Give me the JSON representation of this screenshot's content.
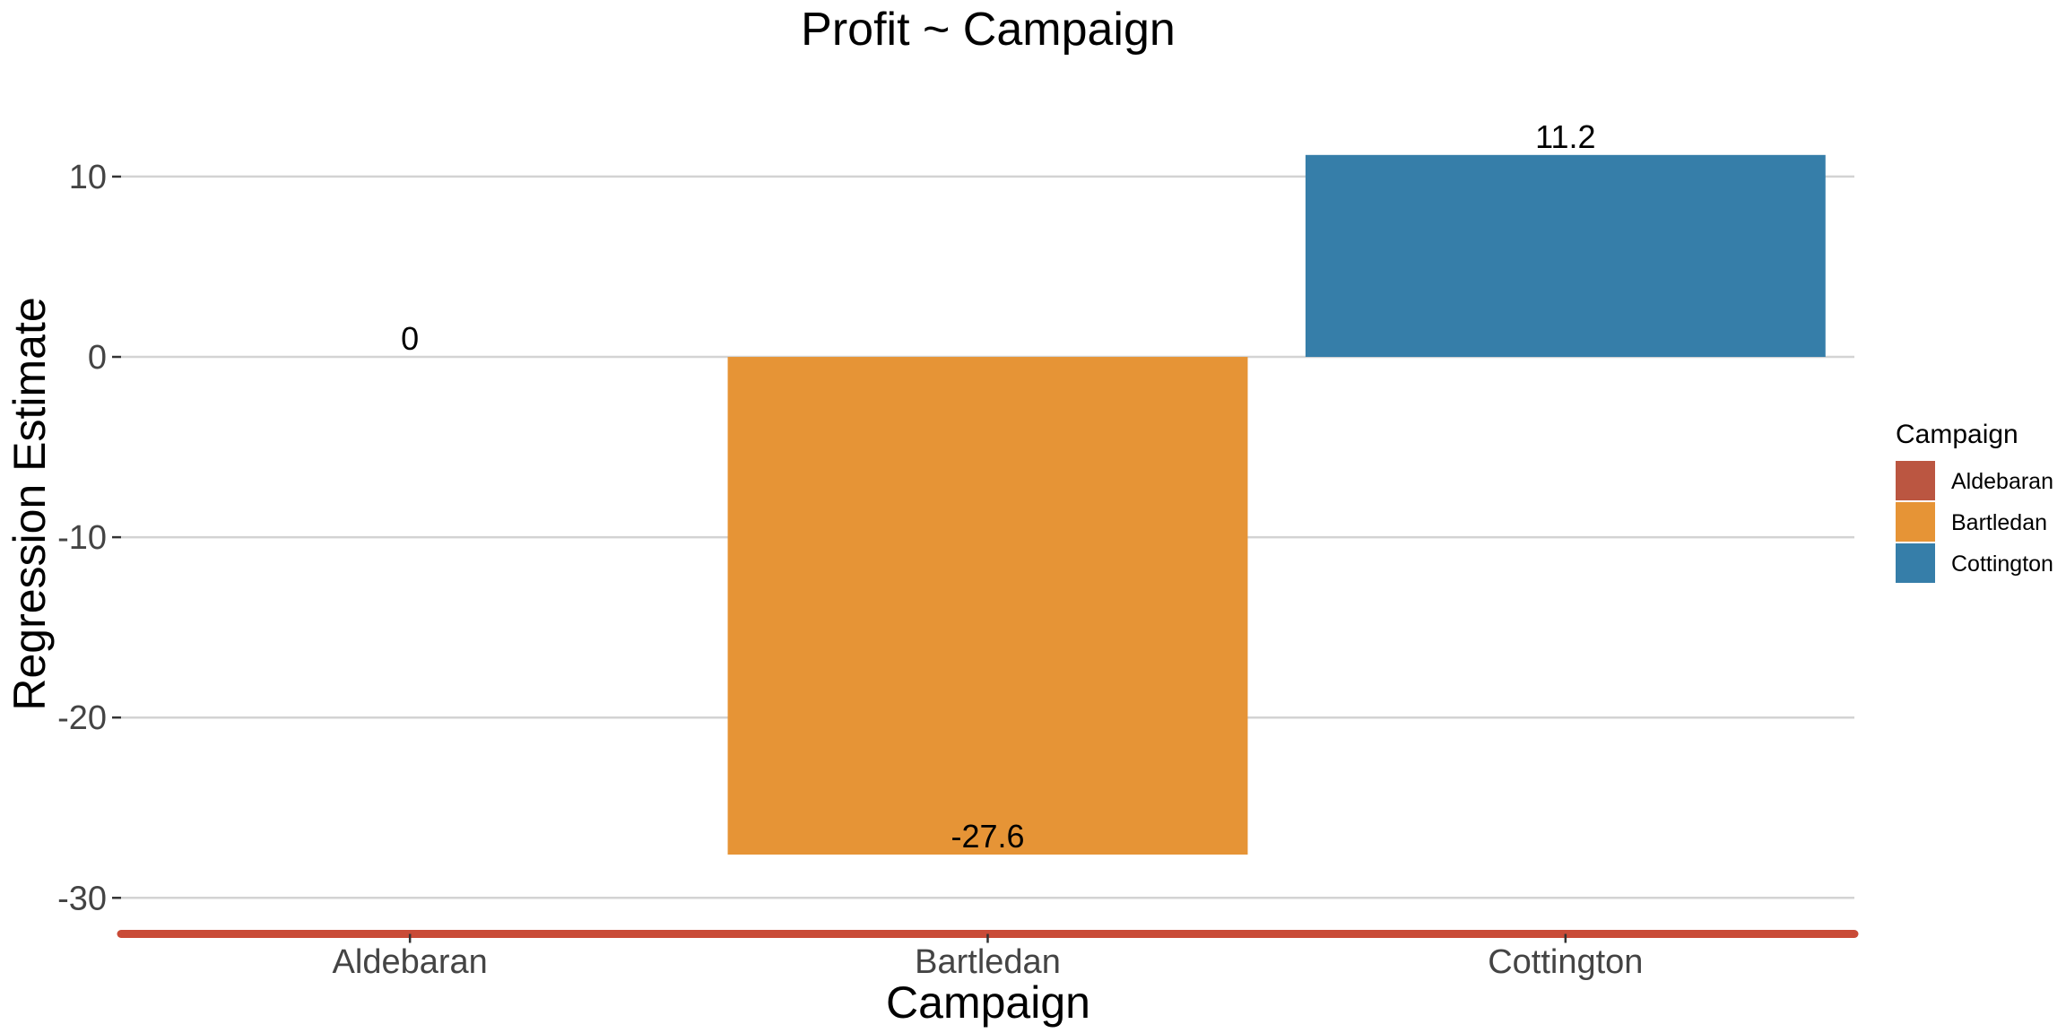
{
  "chart_data": {
    "type": "bar",
    "title": "Profit ~ Campaign",
    "xlabel": "Campaign",
    "ylabel": "Regression Estimate",
    "categories": [
      "Aldebaran",
      "Bartledan",
      "Cottington"
    ],
    "values": [
      0,
      -27.6,
      11.2
    ],
    "data_labels": [
      "0",
      "-27.6",
      "11.2"
    ],
    "colors": [
      "#BB5641",
      "#E69436",
      "#367EA9"
    ],
    "ylim": [
      -32,
      14
    ],
    "yticks": [
      10,
      0,
      -10,
      -20,
      -30
    ],
    "ytick_labels": [
      "10",
      "0",
      "-10",
      "-20",
      "-30"
    ],
    "grid": true,
    "baseline_color": "#C94B37",
    "legend": {
      "title": "Campaign",
      "position": "right",
      "entries": [
        "Aldebaran",
        "Bartledan",
        "Cottington"
      ]
    }
  }
}
